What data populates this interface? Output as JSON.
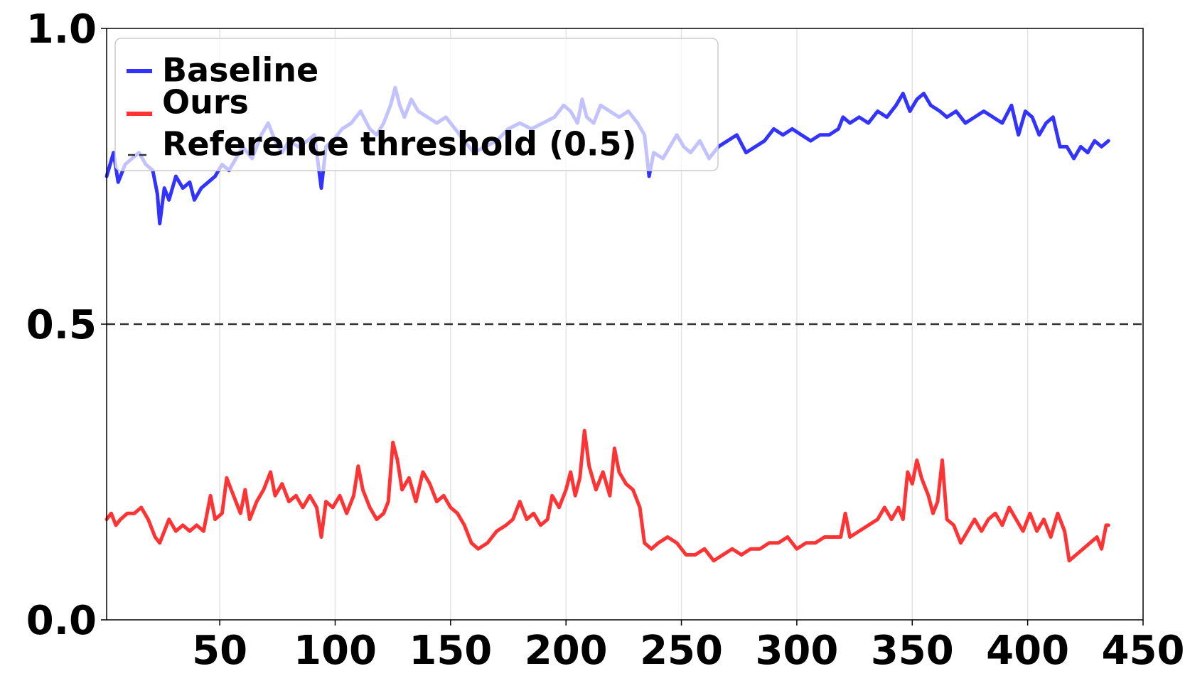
{
  "chart_data": {
    "type": "line",
    "title": "",
    "xlabel": "",
    "ylabel": "",
    "xlim": [
      1,
      450
    ],
    "ylim": [
      0.0,
      1.0
    ],
    "xticks": [
      50,
      100,
      150,
      200,
      250,
      300,
      350,
      400,
      450
    ],
    "yticks": [
      0.0,
      0.5,
      1.0
    ],
    "x_tick_labels": [
      "50",
      "100",
      "150",
      "200",
      "250",
      "300",
      "350",
      "400",
      "450"
    ],
    "y_tick_labels": [
      "0.0",
      "0.5",
      "1.0"
    ],
    "grid": "vertical",
    "legend_position": "top-left",
    "reference": {
      "name": "Reference threshold (0.5)",
      "value": 0.5,
      "color": "#333333",
      "style": "dashed"
    },
    "series": [
      {
        "name": "Baseline",
        "color": "#3333ff",
        "points": [
          [
            1,
            0.75
          ],
          [
            4,
            0.79
          ],
          [
            6,
            0.74
          ],
          [
            9,
            0.77
          ],
          [
            12,
            0.78
          ],
          [
            15,
            0.79
          ],
          [
            18,
            0.77
          ],
          [
            21,
            0.76
          ],
          [
            23,
            0.72
          ],
          [
            24,
            0.67
          ],
          [
            26,
            0.73
          ],
          [
            28,
            0.71
          ],
          [
            31,
            0.75
          ],
          [
            34,
            0.73
          ],
          [
            37,
            0.74
          ],
          [
            39,
            0.71
          ],
          [
            42,
            0.73
          ],
          [
            45,
            0.74
          ],
          [
            48,
            0.75
          ],
          [
            51,
            0.77
          ],
          [
            54,
            0.76
          ],
          [
            57,
            0.78
          ],
          [
            60,
            0.8
          ],
          [
            64,
            0.78
          ],
          [
            68,
            0.82
          ],
          [
            71,
            0.84
          ],
          [
            74,
            0.81
          ],
          [
            77,
            0.79
          ],
          [
            80,
            0.81
          ],
          [
            84,
            0.8
          ],
          [
            88,
            0.81
          ],
          [
            91,
            0.82
          ],
          [
            94,
            0.73
          ],
          [
            96,
            0.8
          ],
          [
            99,
            0.81
          ],
          [
            103,
            0.83
          ],
          [
            107,
            0.84
          ],
          [
            111,
            0.86
          ],
          [
            115,
            0.83
          ],
          [
            118,
            0.82
          ],
          [
            121,
            0.84
          ],
          [
            124,
            0.87
          ],
          [
            126,
            0.9
          ],
          [
            128,
            0.87
          ],
          [
            130,
            0.85
          ],
          [
            133,
            0.88
          ],
          [
            136,
            0.86
          ],
          [
            140,
            0.85
          ],
          [
            144,
            0.84
          ],
          [
            148,
            0.85
          ],
          [
            152,
            0.83
          ],
          [
            156,
            0.81
          ],
          [
            160,
            0.79
          ],
          [
            165,
            0.8
          ],
          [
            170,
            0.81
          ],
          [
            175,
            0.83
          ],
          [
            180,
            0.84
          ],
          [
            185,
            0.83
          ],
          [
            190,
            0.84
          ],
          [
            195,
            0.85
          ],
          [
            199,
            0.87
          ],
          [
            202,
            0.86
          ],
          [
            205,
            0.84
          ],
          [
            207,
            0.88
          ],
          [
            209,
            0.85
          ],
          [
            212,
            0.84
          ],
          [
            215,
            0.87
          ],
          [
            219,
            0.86
          ],
          [
            223,
            0.85
          ],
          [
            227,
            0.86
          ],
          [
            231,
            0.84
          ],
          [
            234,
            0.82
          ],
          [
            236,
            0.75
          ],
          [
            238,
            0.79
          ],
          [
            242,
            0.78
          ],
          [
            245,
            0.8
          ],
          [
            248,
            0.82
          ],
          [
            251,
            0.8
          ],
          [
            254,
            0.79
          ],
          [
            258,
            0.81
          ],
          [
            262,
            0.78
          ],
          [
            266,
            0.8
          ],
          [
            270,
            0.81
          ],
          [
            274,
            0.82
          ],
          [
            278,
            0.79
          ],
          [
            282,
            0.8
          ],
          [
            286,
            0.81
          ],
          [
            290,
            0.83
          ],
          [
            294,
            0.82
          ],
          [
            298,
            0.83
          ],
          [
            302,
            0.82
          ],
          [
            306,
            0.81
          ],
          [
            310,
            0.82
          ],
          [
            314,
            0.82
          ],
          [
            318,
            0.83
          ],
          [
            320,
            0.85
          ],
          [
            323,
            0.84
          ],
          [
            327,
            0.85
          ],
          [
            331,
            0.84
          ],
          [
            335,
            0.86
          ],
          [
            339,
            0.85
          ],
          [
            343,
            0.87
          ],
          [
            346,
            0.89
          ],
          [
            349,
            0.86
          ],
          [
            352,
            0.88
          ],
          [
            355,
            0.89
          ],
          [
            358,
            0.87
          ],
          [
            362,
            0.86
          ],
          [
            365,
            0.85
          ],
          [
            369,
            0.86
          ],
          [
            373,
            0.84
          ],
          [
            377,
            0.85
          ],
          [
            381,
            0.86
          ],
          [
            385,
            0.85
          ],
          [
            389,
            0.84
          ],
          [
            393,
            0.87
          ],
          [
            396,
            0.82
          ],
          [
            399,
            0.86
          ],
          [
            402,
            0.85
          ],
          [
            405,
            0.82
          ],
          [
            408,
            0.84
          ],
          [
            411,
            0.85
          ],
          [
            414,
            0.8
          ],
          [
            417,
            0.8
          ],
          [
            420,
            0.78
          ],
          [
            423,
            0.8
          ],
          [
            426,
            0.79
          ],
          [
            429,
            0.81
          ],
          [
            432,
            0.8
          ],
          [
            435,
            0.81
          ]
        ]
      },
      {
        "name": "Ours",
        "color": "#ff3333",
        "points": [
          [
            1,
            0.17
          ],
          [
            3,
            0.18
          ],
          [
            5,
            0.16
          ],
          [
            7,
            0.17
          ],
          [
            10,
            0.18
          ],
          [
            13,
            0.18
          ],
          [
            16,
            0.19
          ],
          [
            19,
            0.17
          ],
          [
            22,
            0.14
          ],
          [
            24,
            0.13
          ],
          [
            26,
            0.15
          ],
          [
            28,
            0.17
          ],
          [
            31,
            0.15
          ],
          [
            34,
            0.16
          ],
          [
            37,
            0.15
          ],
          [
            40,
            0.16
          ],
          [
            43,
            0.15
          ],
          [
            46,
            0.21
          ],
          [
            48,
            0.17
          ],
          [
            51,
            0.18
          ],
          [
            53,
            0.24
          ],
          [
            55,
            0.22
          ],
          [
            57,
            0.2
          ],
          [
            59,
            0.18
          ],
          [
            61,
            0.22
          ],
          [
            63,
            0.17
          ],
          [
            66,
            0.2
          ],
          [
            69,
            0.22
          ],
          [
            72,
            0.25
          ],
          [
            74,
            0.21
          ],
          [
            77,
            0.23
          ],
          [
            80,
            0.2
          ],
          [
            83,
            0.21
          ],
          [
            86,
            0.19
          ],
          [
            89,
            0.21
          ],
          [
            92,
            0.19
          ],
          [
            94,
            0.14
          ],
          [
            96,
            0.2
          ],
          [
            99,
            0.19
          ],
          [
            102,
            0.21
          ],
          [
            105,
            0.18
          ],
          [
            108,
            0.21
          ],
          [
            110,
            0.26
          ],
          [
            112,
            0.22
          ],
          [
            115,
            0.19
          ],
          [
            118,
            0.17
          ],
          [
            121,
            0.18
          ],
          [
            123,
            0.2
          ],
          [
            125,
            0.3
          ],
          [
            127,
            0.27
          ],
          [
            129,
            0.22
          ],
          [
            132,
            0.24
          ],
          [
            135,
            0.2
          ],
          [
            138,
            0.25
          ],
          [
            141,
            0.23
          ],
          [
            144,
            0.2
          ],
          [
            147,
            0.21
          ],
          [
            150,
            0.19
          ],
          [
            153,
            0.18
          ],
          [
            156,
            0.16
          ],
          [
            159,
            0.13
          ],
          [
            162,
            0.12
          ],
          [
            166,
            0.13
          ],
          [
            170,
            0.15
          ],
          [
            174,
            0.16
          ],
          [
            177,
            0.17
          ],
          [
            180,
            0.2
          ],
          [
            183,
            0.17
          ],
          [
            186,
            0.18
          ],
          [
            189,
            0.16
          ],
          [
            192,
            0.17
          ],
          [
            194,
            0.21
          ],
          [
            197,
            0.19
          ],
          [
            200,
            0.22
          ],
          [
            202,
            0.25
          ],
          [
            204,
            0.21
          ],
          [
            206,
            0.24
          ],
          [
            208,
            0.32
          ],
          [
            210,
            0.26
          ],
          [
            213,
            0.22
          ],
          [
            216,
            0.25
          ],
          [
            219,
            0.21
          ],
          [
            221,
            0.29
          ],
          [
            223,
            0.25
          ],
          [
            226,
            0.23
          ],
          [
            229,
            0.22
          ],
          [
            232,
            0.19
          ],
          [
            234,
            0.13
          ],
          [
            237,
            0.12
          ],
          [
            240,
            0.13
          ],
          [
            244,
            0.14
          ],
          [
            248,
            0.13
          ],
          [
            252,
            0.11
          ],
          [
            256,
            0.11
          ],
          [
            260,
            0.12
          ],
          [
            264,
            0.1
          ],
          [
            268,
            0.11
          ],
          [
            272,
            0.12
          ],
          [
            276,
            0.11
          ],
          [
            280,
            0.12
          ],
          [
            284,
            0.12
          ],
          [
            288,
            0.13
          ],
          [
            292,
            0.13
          ],
          [
            296,
            0.14
          ],
          [
            300,
            0.12
          ],
          [
            304,
            0.13
          ],
          [
            308,
            0.13
          ],
          [
            312,
            0.14
          ],
          [
            316,
            0.14
          ],
          [
            319,
            0.14
          ],
          [
            321,
            0.18
          ],
          [
            323,
            0.14
          ],
          [
            327,
            0.15
          ],
          [
            331,
            0.16
          ],
          [
            335,
            0.17
          ],
          [
            338,
            0.19
          ],
          [
            341,
            0.17
          ],
          [
            344,
            0.19
          ],
          [
            346,
            0.17
          ],
          [
            348,
            0.25
          ],
          [
            350,
            0.23
          ],
          [
            352,
            0.27
          ],
          [
            354,
            0.24
          ],
          [
            357,
            0.21
          ],
          [
            359,
            0.18
          ],
          [
            361,
            0.2
          ],
          [
            363,
            0.27
          ],
          [
            365,
            0.17
          ],
          [
            368,
            0.16
          ],
          [
            371,
            0.13
          ],
          [
            374,
            0.15
          ],
          [
            377,
            0.17
          ],
          [
            380,
            0.15
          ],
          [
            383,
            0.17
          ],
          [
            386,
            0.18
          ],
          [
            389,
            0.16
          ],
          [
            392,
            0.19
          ],
          [
            395,
            0.17
          ],
          [
            398,
            0.15
          ],
          [
            401,
            0.18
          ],
          [
            404,
            0.15
          ],
          [
            407,
            0.17
          ],
          [
            410,
            0.14
          ],
          [
            413,
            0.18
          ],
          [
            416,
            0.15
          ],
          [
            418,
            0.1
          ],
          [
            421,
            0.11
          ],
          [
            424,
            0.12
          ],
          [
            427,
            0.13
          ],
          [
            430,
            0.14
          ],
          [
            432,
            0.12
          ],
          [
            434,
            0.16
          ],
          [
            435,
            0.16
          ]
        ]
      }
    ]
  }
}
